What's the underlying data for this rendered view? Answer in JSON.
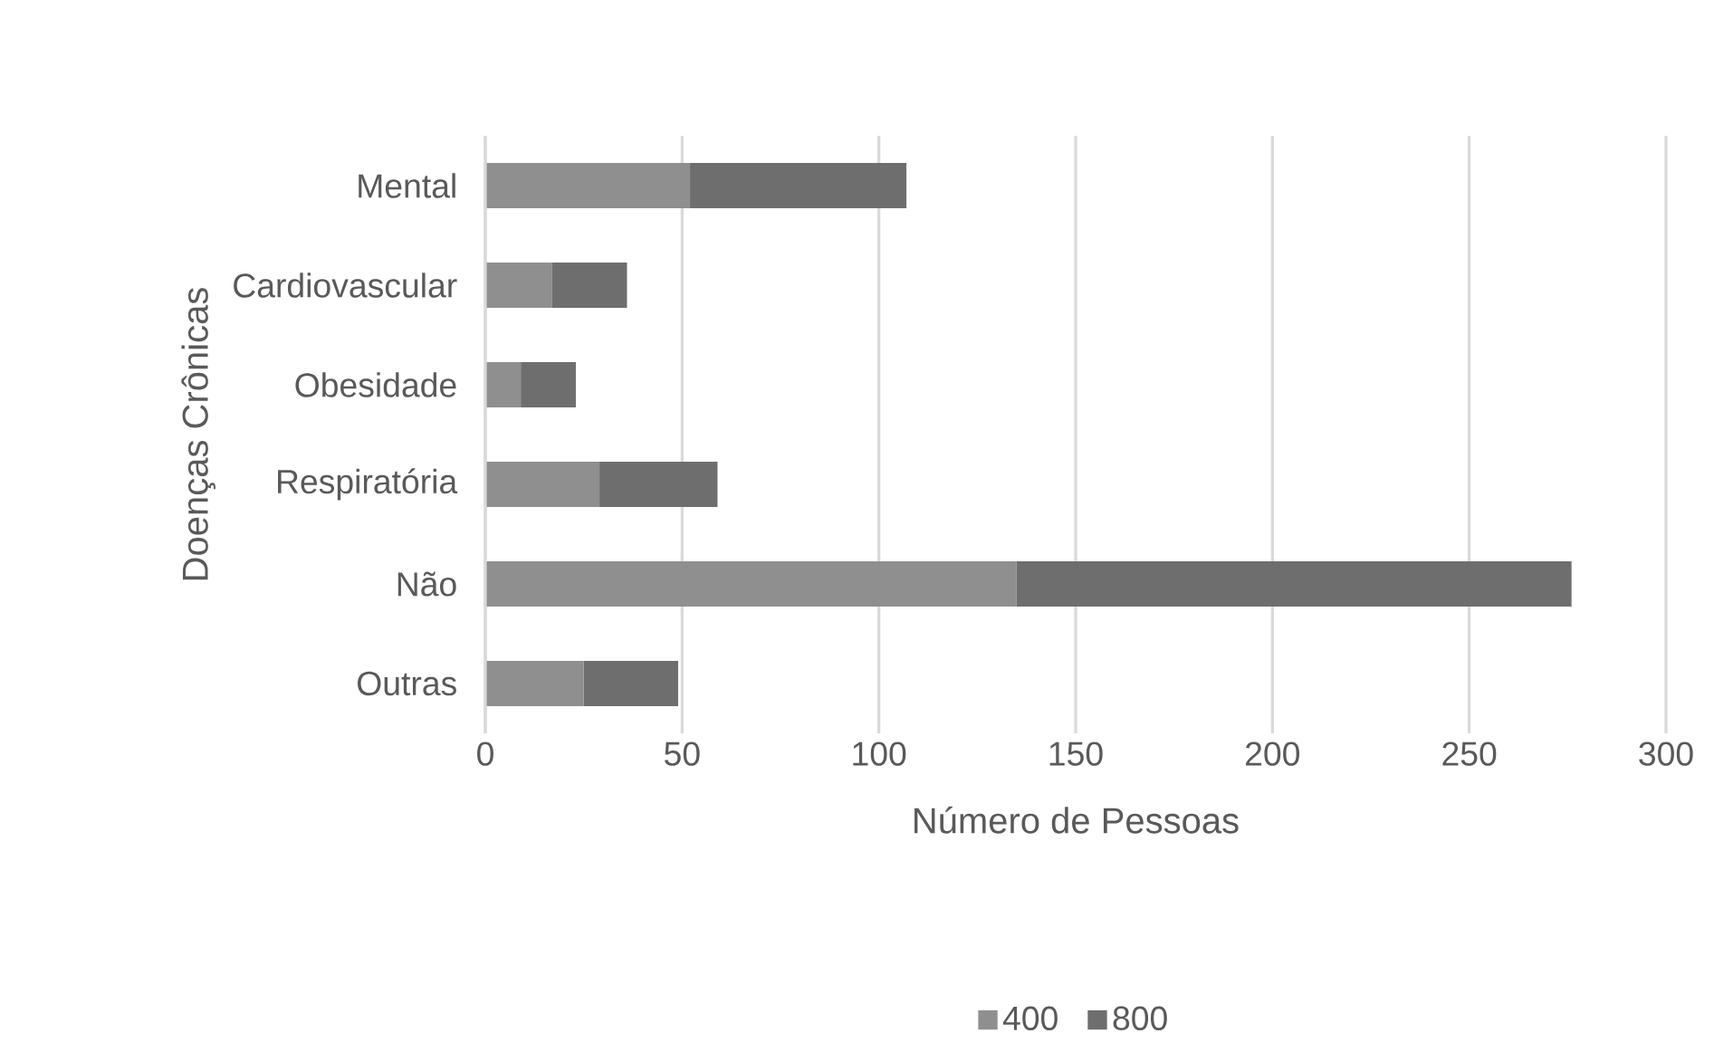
{
  "chart_data": {
    "type": "bar",
    "orientation": "horizontal",
    "stacked": true,
    "xlabel": "Número de Pessoas",
    "ylabel": "Doenças Crônicas",
    "categories": [
      "Mental",
      "Cardiovascular",
      "Obesidade",
      "Respiratória",
      "Não",
      "Outras"
    ],
    "series": [
      {
        "name": "400",
        "color": "#8f8f8f",
        "values": [
          52,
          17,
          9,
          29,
          135,
          25
        ]
      },
      {
        "name": "800",
        "color": "#6e6e6e",
        "values": [
          55,
          19,
          14,
          30,
          141,
          24
        ]
      }
    ],
    "xlim": [
      0,
      300
    ],
    "xticks": [
      0,
      50,
      100,
      150,
      200,
      250,
      300
    ],
    "grid": "x",
    "legend": "bottom"
  }
}
